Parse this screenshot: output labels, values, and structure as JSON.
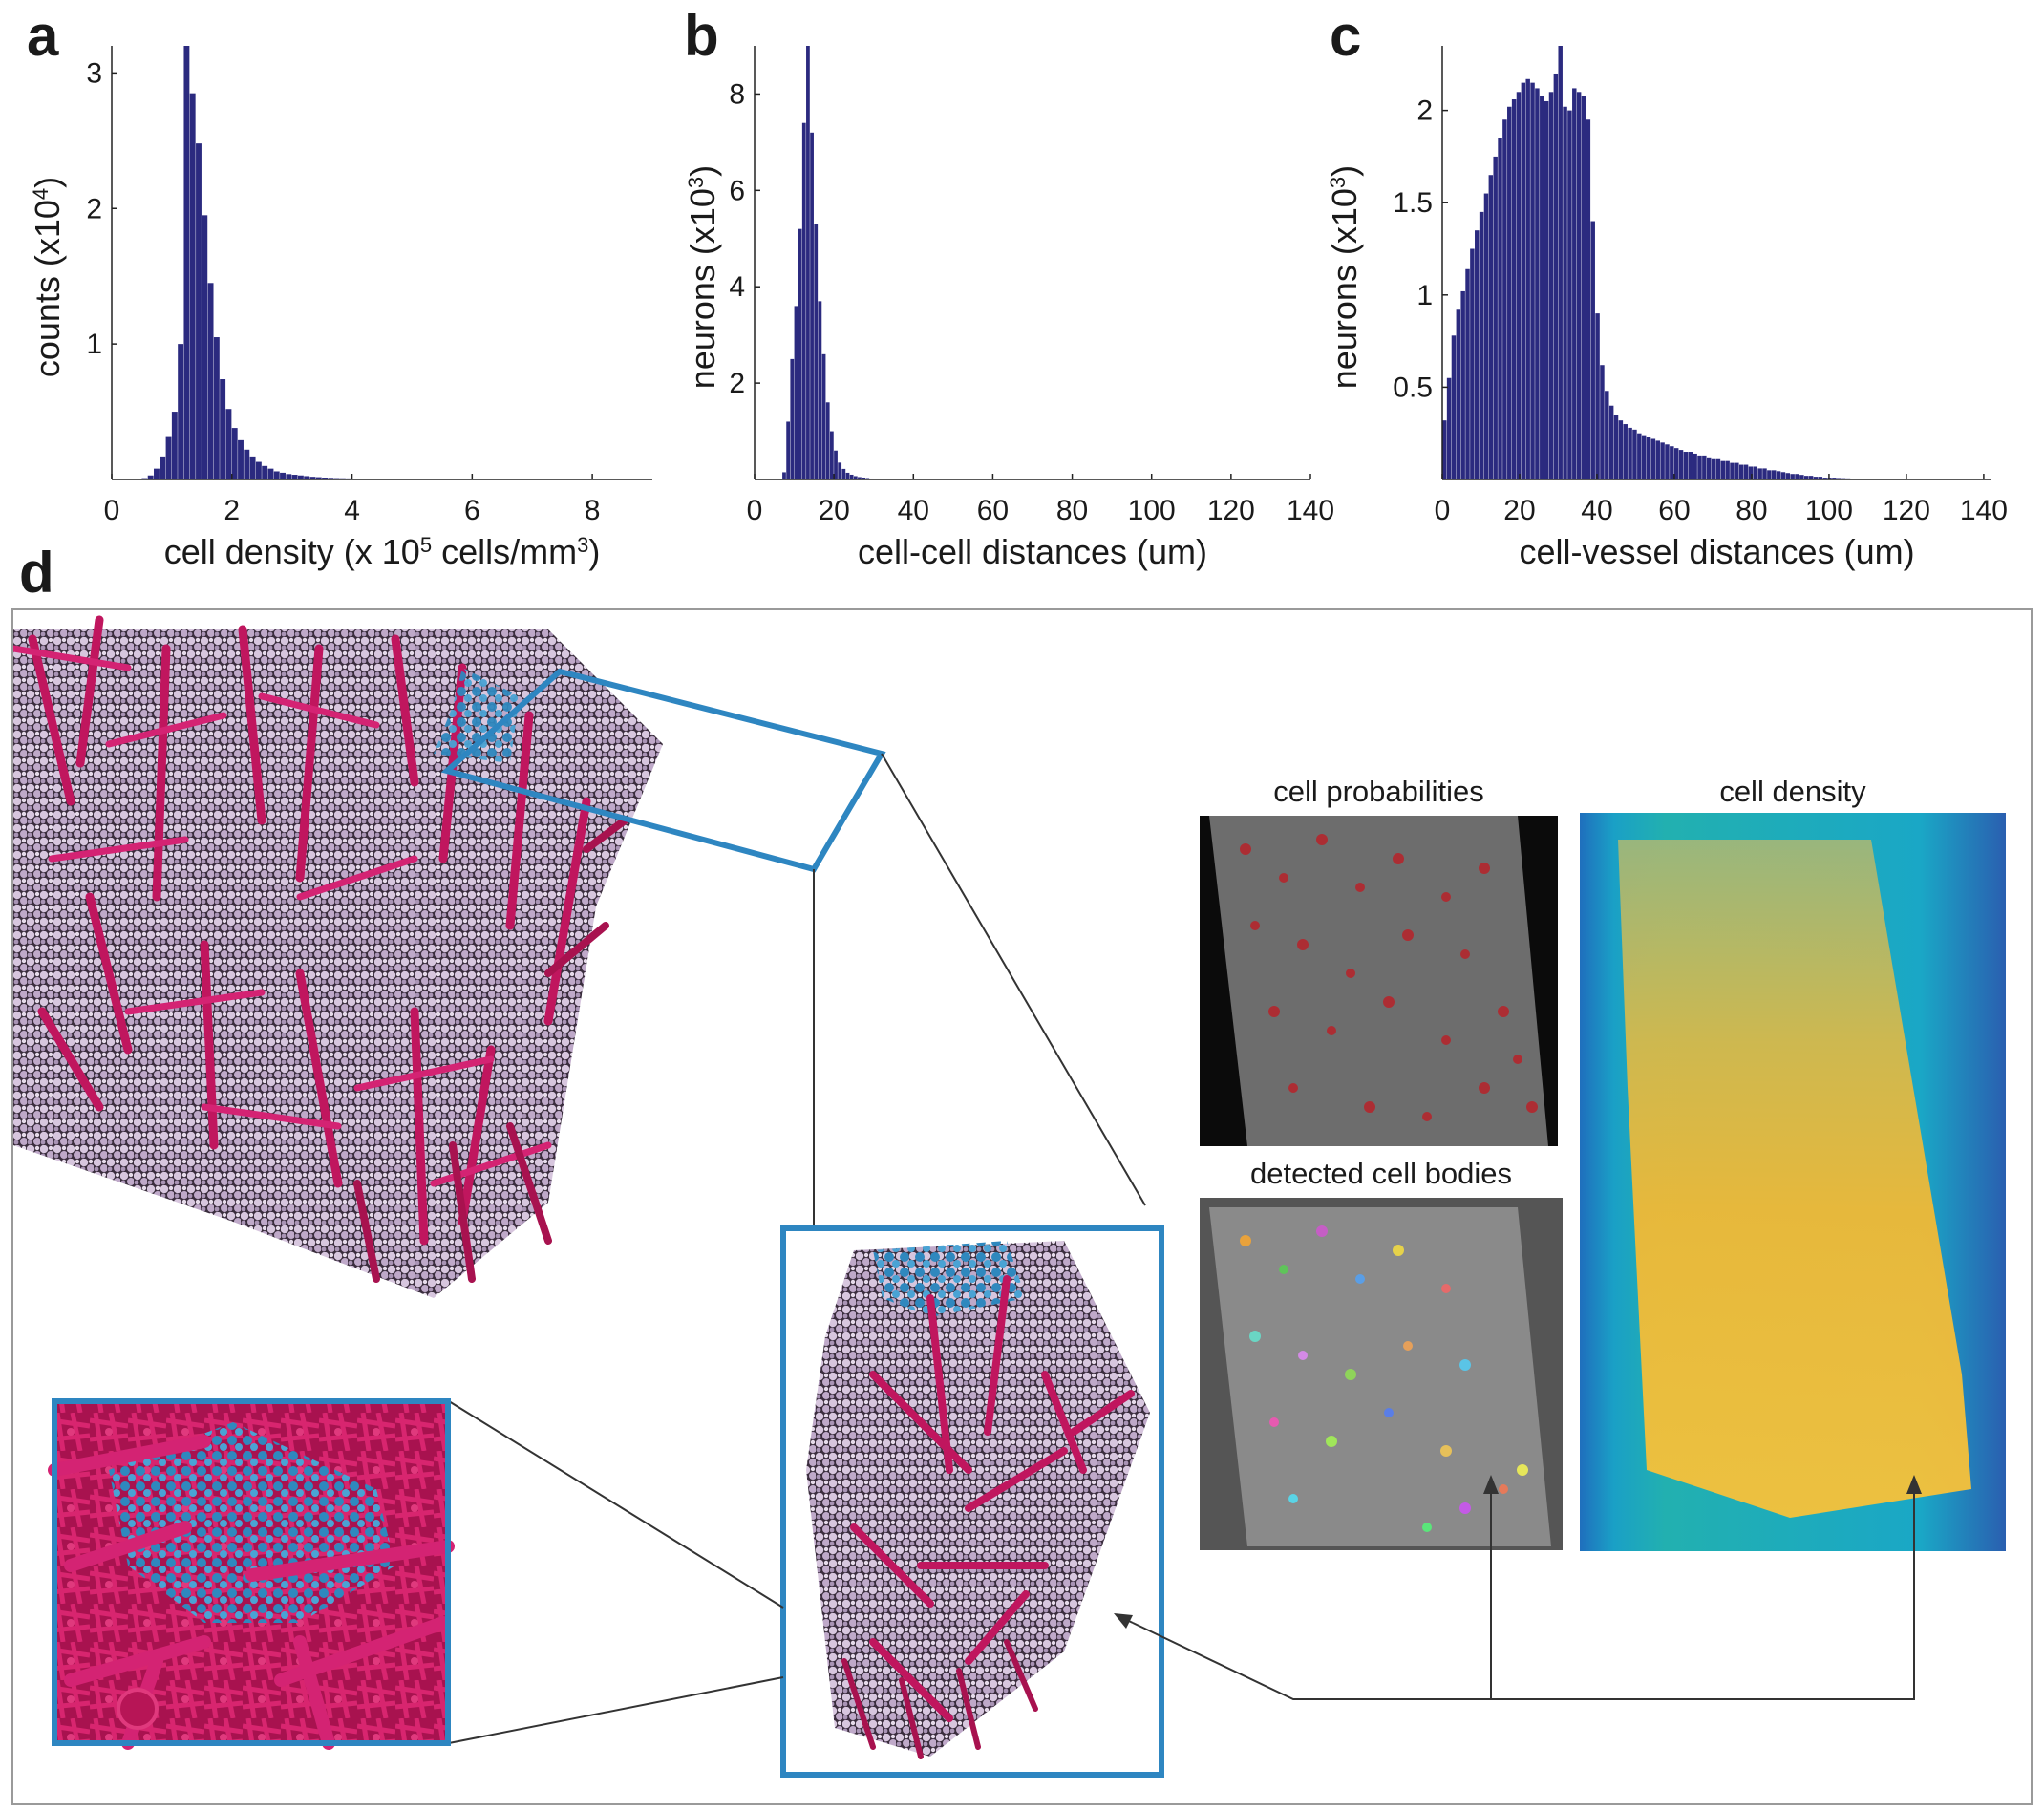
{
  "panels": {
    "a": {
      "label": "a"
    },
    "b": {
      "label": "b"
    },
    "c": {
      "label": "c"
    },
    "d": {
      "label": "d"
    }
  },
  "chart_data": [
    {
      "type": "bar",
      "panel": "a",
      "xlabel_main": "cell density (x 10",
      "xlabel_sup": "5",
      "xlabel_rest": " cells/mm",
      "xlabel_sup2": "3",
      "xlabel_end": ")",
      "ylabel_main": "counts (x10",
      "ylabel_sup": "4",
      "ylabel_end": ")",
      "xlim": [
        0,
        9
      ],
      "ylim": [
        0,
        3.2
      ],
      "xticks": [
        "0",
        "2",
        "4",
        "6",
        "8"
      ],
      "xtick_values": [
        0,
        2,
        4,
        6,
        8
      ],
      "yticks": [
        "1",
        "2",
        "3"
      ],
      "ytick_values": [
        1,
        2,
        3
      ],
      "bin_start": 0.5,
      "bin_width": 0.1,
      "values": [
        0.01,
        0.03,
        0.08,
        0.17,
        0.32,
        0.5,
        1.0,
        3.2,
        2.85,
        2.48,
        1.95,
        1.45,
        1.05,
        0.74,
        0.52,
        0.38,
        0.29,
        0.22,
        0.17,
        0.13,
        0.1,
        0.08,
        0.06,
        0.05,
        0.04,
        0.035,
        0.03,
        0.025,
        0.02,
        0.017,
        0.014,
        0.012,
        0.01,
        0.009,
        0.008,
        0.007,
        0.006,
        0.005,
        0.004,
        0.004,
        0.003,
        0.003,
        0.002,
        0.002,
        0.002,
        0.001,
        0.001,
        0.001,
        0.001,
        0.001
      ]
    },
    {
      "type": "bar",
      "panel": "b",
      "xlabel": "cell-cell distances (um)",
      "ylabel_main": "neurons (x10",
      "ylabel_sup": "3",
      "ylabel_end": ")",
      "xlim": [
        0,
        140
      ],
      "ylim": [
        0,
        9
      ],
      "xticks": [
        "0",
        "20",
        "40",
        "60",
        "80",
        "100",
        "120",
        "140"
      ],
      "xtick_values": [
        0,
        20,
        40,
        60,
        80,
        100,
        120,
        140
      ],
      "yticks": [
        "2",
        "4",
        "6",
        "8"
      ],
      "ytick_values": [
        2,
        4,
        6,
        8
      ],
      "bin_start": 7,
      "bin_width": 1,
      "values": [
        0.15,
        1.2,
        2.5,
        3.6,
        5.2,
        7.4,
        9.0,
        7.2,
        5.3,
        3.7,
        2.6,
        1.6,
        1.0,
        0.6,
        0.35,
        0.22,
        0.14,
        0.1,
        0.07,
        0.05,
        0.04,
        0.03,
        0.02,
        0.015,
        0.01,
        0.008,
        0.006,
        0.004
      ]
    },
    {
      "type": "bar",
      "panel": "c",
      "xlabel": "cell-vessel distances (um)",
      "ylabel_main": "neurons (x10",
      "ylabel_sup": "3",
      "ylabel_end": ")",
      "xlim": [
        0,
        142
      ],
      "ylim": [
        0,
        2.35
      ],
      "xticks": [
        "0",
        "20",
        "40",
        "60",
        "80",
        "100",
        "120",
        "140"
      ],
      "xtick_values": [
        0,
        20,
        40,
        60,
        80,
        100,
        120,
        140
      ],
      "yticks": [
        "0.5",
        "1",
        "1.5",
        "2"
      ],
      "ytick_values": [
        0.5,
        1,
        1.5,
        2
      ],
      "bin_start": 0,
      "bin_width": 1.2,
      "values": [
        0.32,
        0.55,
        0.78,
        0.92,
        1.02,
        1.14,
        1.25,
        1.35,
        1.45,
        1.55,
        1.65,
        1.75,
        1.85,
        1.95,
        2.02,
        2.06,
        2.1,
        2.15,
        2.17,
        2.15,
        2.12,
        2.08,
        2.05,
        2.1,
        2.2,
        2.35,
        2.02,
        2.0,
        2.12,
        2.1,
        2.08,
        1.95,
        1.4,
        0.9,
        0.62,
        0.48,
        0.4,
        0.35,
        0.32,
        0.3,
        0.28,
        0.27,
        0.25,
        0.24,
        0.23,
        0.22,
        0.21,
        0.2,
        0.19,
        0.18,
        0.17,
        0.16,
        0.15,
        0.15,
        0.14,
        0.13,
        0.13,
        0.12,
        0.11,
        0.11,
        0.1,
        0.1,
        0.09,
        0.09,
        0.08,
        0.08,
        0.07,
        0.07,
        0.06,
        0.06,
        0.05,
        0.05,
        0.045,
        0.04,
        0.035,
        0.03,
        0.03,
        0.025,
        0.02,
        0.02,
        0.015,
        0.015,
        0.01,
        0.01,
        0.01,
        0.008,
        0.007,
        0.006,
        0.005,
        0.004,
        0.003,
        0.003,
        0.002,
        0.002,
        0.001,
        0.001,
        0.001,
        0.001,
        0.001,
        0.001,
        0.001,
        0.001,
        0.001,
        0.001,
        0.001,
        0.001,
        0.001,
        0.001,
        0.001,
        0.001,
        0.001,
        0.001,
        0.001,
        0.001,
        0.001,
        0.001,
        0.001
      ]
    }
  ],
  "panel_d": {
    "caption_probabilities": "cell probabilities",
    "caption_detected": "detected cell bodies",
    "caption_density": "cell density"
  },
  "colors": {
    "bar": "#2b2a7f",
    "vessel": "#c0165e",
    "cell": "#cdb9d6",
    "highlight": "#2e86c1",
    "frame": "#2e86c1"
  }
}
